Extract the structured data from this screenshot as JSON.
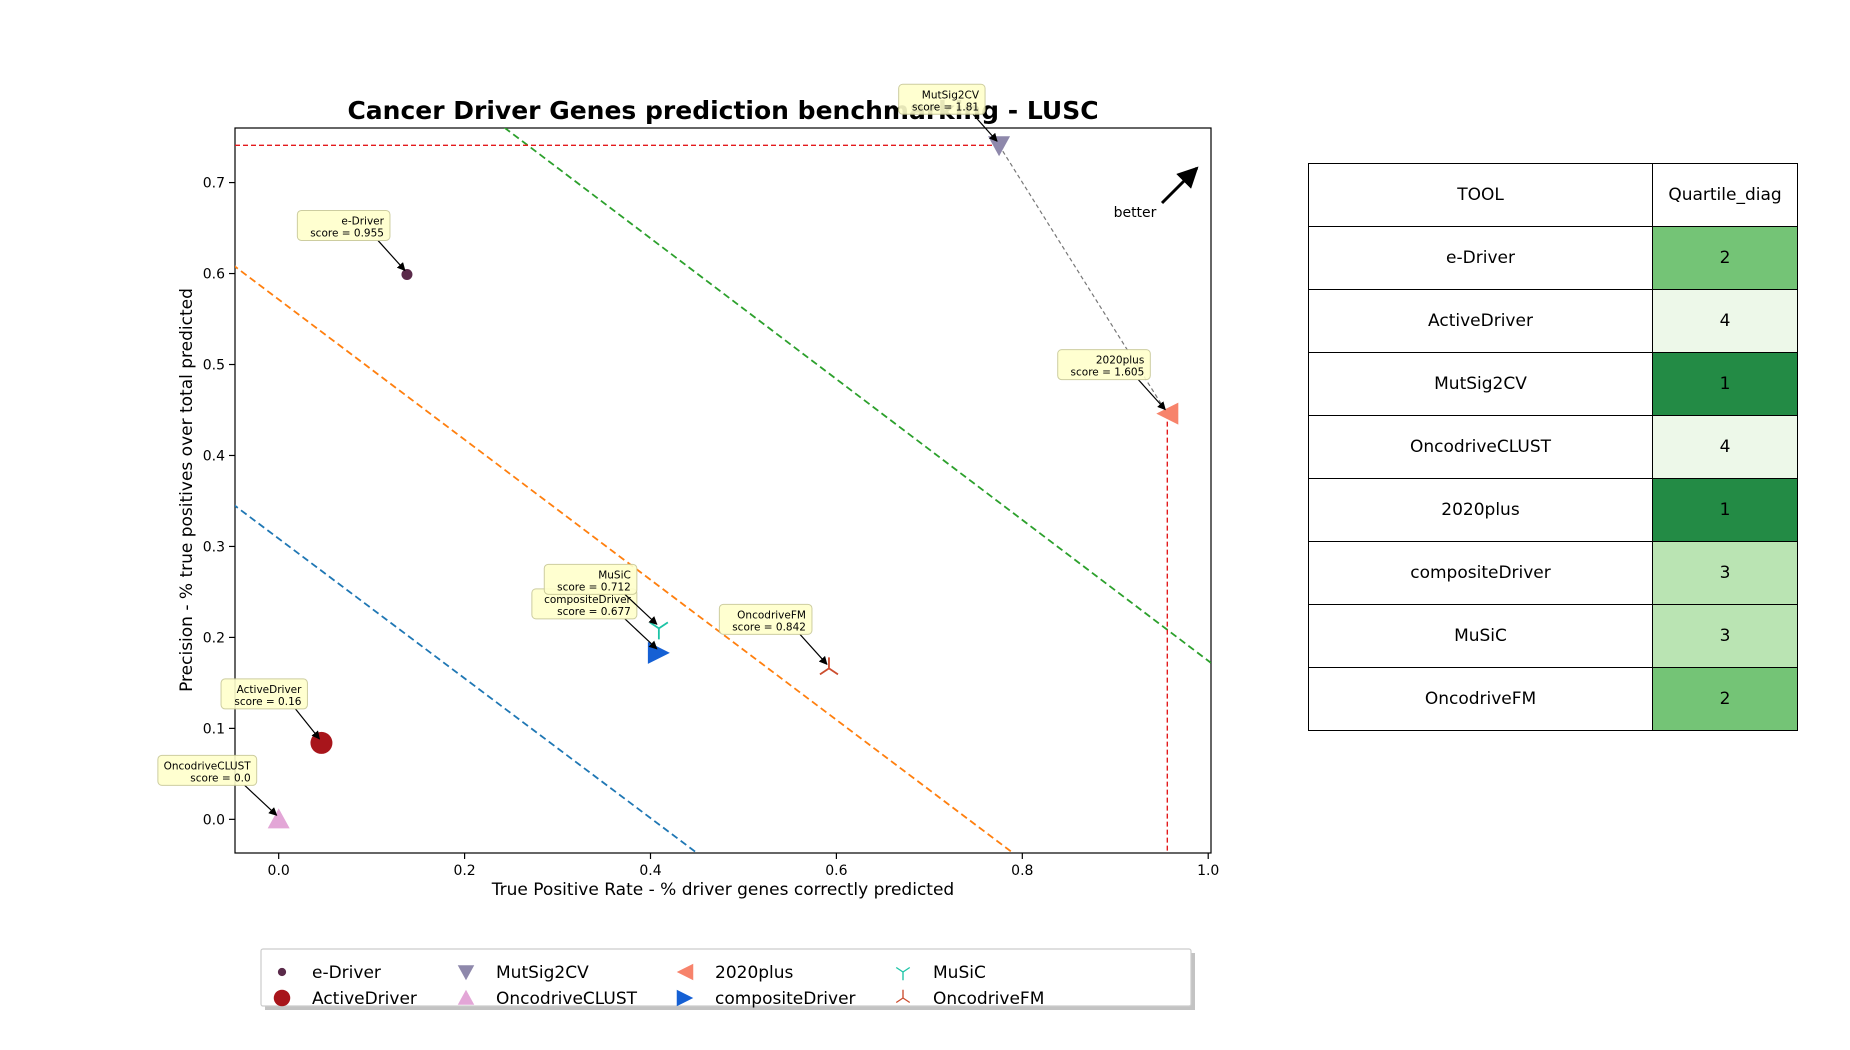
{
  "chart_data": {
    "type": "scatter",
    "title": "Cancer Driver Genes prediction benchmarking - LUSC",
    "xlabel": "True Positive Rate - % driver genes correctly predicted",
    "ylabel": "Precision - % true positives over total predicted",
    "xlim": [
      -0.047,
      1.003
    ],
    "ylim": [
      -0.037,
      0.76
    ],
    "xticks": [
      "0.0",
      "0.2",
      "0.4",
      "0.6",
      "0.8",
      "1.0"
    ],
    "yticks": [
      "0.0",
      "0.1",
      "0.2",
      "0.3",
      "0.4",
      "0.5",
      "0.6",
      "0.7"
    ],
    "legend_position": "bottom-center",
    "better_label": "better",
    "series": [
      {
        "name": "e-Driver",
        "x": 0.138,
        "y": 0.599,
        "marker": "circle-small",
        "color": "#5a2a4a",
        "annotation": [
          "e-Driver",
          "score = 0.955"
        ]
      },
      {
        "name": "ActiveDriver",
        "x": 0.046,
        "y": 0.084,
        "marker": "circle-large",
        "color": "#a8151b",
        "annotation": [
          "ActiveDriver",
          "score = 0.16"
        ]
      },
      {
        "name": "MutSig2CV",
        "x": 0.775,
        "y": 0.741,
        "marker": "triangle-down",
        "color": "#8e88ab",
        "annotation": [
          "MutSig2CV",
          "score = 1.81"
        ]
      },
      {
        "name": "OncodriveCLUST",
        "x": 0.0,
        "y": 0.0,
        "marker": "triangle-up",
        "color": "#e3a6d7",
        "annotation": [
          "OncodriveCLUST",
          "score = 0.0"
        ]
      },
      {
        "name": "2020plus",
        "x": 0.956,
        "y": 0.446,
        "marker": "triangle-left",
        "color": "#f7836b",
        "annotation": [
          "2020plus",
          "score = 1.605"
        ]
      },
      {
        "name": "compositeDriver",
        "x": 0.409,
        "y": 0.183,
        "marker": "triangle-right",
        "color": "#1560d4",
        "annotation": [
          "compositeDriver",
          "score = 0.677"
        ]
      },
      {
        "name": "MuSiC",
        "x": 0.409,
        "y": 0.21,
        "marker": "tri-down",
        "color": "#1cc4a6",
        "annotation": [
          "MuSiC",
          "score = 0.712"
        ]
      },
      {
        "name": "OncodriveFM",
        "x": 0.592,
        "y": 0.166,
        "marker": "tri-up",
        "color": "#cc4d2e",
        "annotation": [
          "OncodriveFM",
          "score = 0.842"
        ]
      }
    ],
    "pareto_front": {
      "color": "#777777",
      "points": [
        [
          0.775,
          0.741
        ],
        [
          0.956,
          0.446
        ]
      ]
    },
    "optimal_lines": {
      "color": "#e41a1c",
      "vertical_x": 0.956,
      "horizontal_y": 0.741
    },
    "diagonal_lines": [
      {
        "color": "#1f77b4",
        "points": [
          [
            -0.05,
            0.347
          ],
          [
            0.45,
            -0.037
          ]
        ]
      },
      {
        "color": "#ff7f0e",
        "points": [
          [
            -0.05,
            0.61
          ],
          [
            0.79,
            -0.037
          ]
        ]
      },
      {
        "color": "#2ca02c",
        "points": [
          [
            0.224,
            0.775
          ],
          [
            1.003,
            0.172
          ]
        ]
      }
    ]
  },
  "table": {
    "headers": [
      "TOOL",
      "Quartile_diag"
    ],
    "rows": [
      {
        "tool": "e-Driver",
        "quartile": "2",
        "color": "#74c476"
      },
      {
        "tool": "ActiveDriver",
        "quartile": "4",
        "color": "#edf8e9"
      },
      {
        "tool": "MutSig2CV",
        "quartile": "1",
        "color": "#238b45"
      },
      {
        "tool": "OncodriveCLUST",
        "quartile": "4",
        "color": "#edf8e9"
      },
      {
        "tool": "2020plus",
        "quartile": "1",
        "color": "#238b45"
      },
      {
        "tool": "compositeDriver",
        "quartile": "3",
        "color": "#bae4b3"
      },
      {
        "tool": "MuSiC",
        "quartile": "3",
        "color": "#bae4b3"
      },
      {
        "tool": "OncodriveFM",
        "quartile": "2",
        "color": "#74c476"
      }
    ]
  }
}
